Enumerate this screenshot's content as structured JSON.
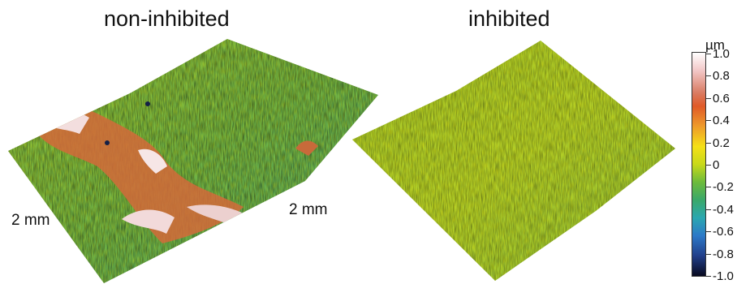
{
  "titles": {
    "left": "non-inhibited",
    "right": "inhibited"
  },
  "dimensions": {
    "left": "2 mm",
    "right": "2 mm"
  },
  "colorbar": {
    "unit": "µm",
    "ticks": [
      "1.0",
      "0.8",
      "0.6",
      "0.4",
      "0.2",
      "0",
      "-0.2",
      "-0.4",
      "-0.6",
      "-0.8",
      "-1.0"
    ],
    "range": [
      -1.0,
      1.0
    ]
  }
}
